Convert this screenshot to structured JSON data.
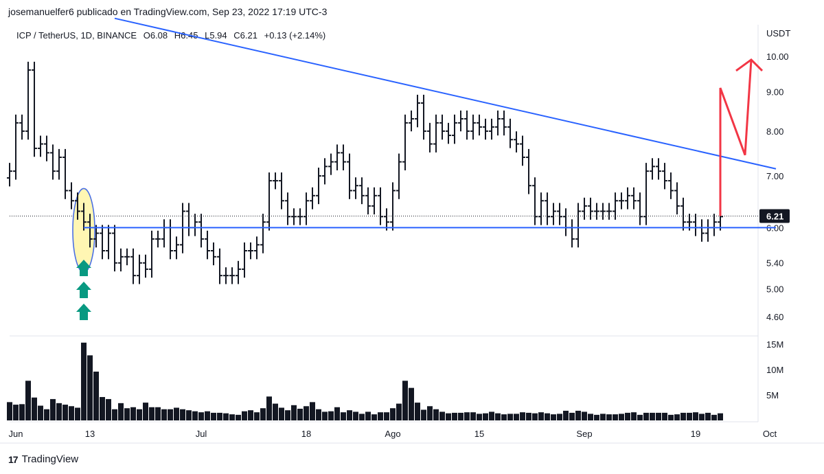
{
  "header": {
    "publisher": "josemanuelfer6 publicado en TradingView.com, Sep 23, 2022 17:19 UTC-3"
  },
  "brand": {
    "name": "TradingView",
    "logo_icon": "tradingview-logo-icon"
  },
  "colors": {
    "bars": "#131722",
    "trendline": "#2962ff",
    "projection": "#f23645",
    "ellipse_stroke": "#4a6fe3",
    "ellipse_fill": "#fff6b3",
    "arrows": "#089981",
    "volume": "#131722",
    "price_tag_bg": "#131722"
  },
  "chart_data": {
    "type": "ohlc",
    "symbol": "ICP / TetherUS, 1D, BINANCE",
    "ohlc_summary": {
      "O": "6.08",
      "H": "6.45",
      "L": "5.94",
      "C": "6.21",
      "change": "+0.13 (+2.14%)"
    },
    "y_unit": "USDT",
    "y_ticks": [
      10.0,
      9.0,
      8.0,
      7.0,
      6.0,
      5.4,
      5.0,
      4.6
    ],
    "y_tick_labels": [
      "10.00",
      "9.00",
      "8.00",
      "7.00",
      "6.00",
      "5.40",
      "5.00",
      "4.60"
    ],
    "last_price_label": "6.21",
    "last_price": 6.21,
    "x_tick_labels": [
      "Jun",
      "13",
      "Jul",
      "18",
      "Ago",
      "15",
      "Sep",
      "19",
      "Oct"
    ],
    "x_tick_dates": [
      "2022-06-01",
      "2022-06-13",
      "2022-07-01",
      "2022-07-18",
      "2022-08-01",
      "2022-08-15",
      "2022-09-01",
      "2022-09-19",
      "2022-10-01"
    ],
    "start_date": "2022-05-31",
    "volume_ticks_labels": [
      "15M",
      "10M",
      "5M"
    ],
    "volume_ticks": [
      15,
      10,
      5
    ],
    "closes": [
      7.1,
      8.2,
      8.0,
      9.6,
      7.6,
      7.7,
      7.5,
      7.1,
      7.4,
      6.7,
      6.5,
      6.3,
      6.1,
      5.8,
      5.9,
      5.6,
      5.9,
      5.4,
      5.5,
      5.5,
      5.2,
      5.4,
      5.3,
      5.8,
      5.8,
      6.0,
      5.6,
      5.7,
      6.3,
      6.0,
      6.1,
      5.8,
      5.6,
      5.5,
      5.2,
      5.2,
      5.2,
      5.3,
      5.6,
      5.6,
      5.7,
      6.1,
      6.9,
      6.9,
      6.5,
      6.2,
      6.2,
      6.2,
      6.5,
      6.6,
      7.0,
      7.2,
      7.3,
      7.5,
      7.3,
      6.7,
      6.8,
      6.6,
      6.4,
      6.6,
      6.2,
      6.1,
      6.7,
      7.3,
      8.2,
      8.3,
      8.7,
      8.0,
      7.7,
      8.2,
      8.0,
      7.9,
      8.2,
      8.3,
      8.0,
      8.2,
      8.1,
      8.0,
      8.1,
      8.3,
      8.1,
      7.8,
      7.7,
      7.4,
      6.8,
      6.2,
      6.5,
      6.2,
      6.3,
      6.2,
      6.0,
      5.8,
      6.3,
      6.4,
      6.3,
      6.3,
      6.3,
      6.3,
      6.5,
      6.5,
      6.6,
      6.5,
      6.2,
      7.1,
      7.2,
      7.1,
      6.9,
      6.7,
      6.4,
      6.1,
      6.1,
      6.0,
      5.9,
      6.0,
      6.1,
      6.2
    ],
    "volumes_m": [
      3.6,
      3.1,
      3.2,
      7.8,
      4.5,
      2.9,
      2.2,
      4.2,
      3.4,
      3.1,
      2.8,
      2.5,
      15.3,
      12.8,
      9.6,
      4.6,
      4.2,
      2.2,
      3.4,
      2.4,
      2.6,
      2.2,
      3.5,
      2.6,
      2.6,
      2.2,
      2.2,
      2.5,
      2.2,
      2.0,
      1.8,
      1.6,
      1.8,
      1.5,
      1.5,
      1.4,
      1.2,
      1.1,
      1.8,
      2.0,
      1.6,
      2.4,
      4.7,
      3.3,
      2.5,
      2.0,
      3.0,
      2.3,
      2.8,
      3.6,
      2.2,
      1.7,
      1.8,
      2.6,
      1.6,
      2.0,
      1.7,
      1.3,
      1.7,
      1.2,
      1.6,
      1.6,
      2.4,
      3.3,
      7.8,
      6.4,
      3.5,
      2.1,
      2.8,
      2.2,
      1.7,
      1.4,
      1.5,
      1.5,
      1.6,
      1.6,
      1.3,
      1.4,
      1.7,
      1.4,
      1.2,
      1.3,
      1.3,
      1.6,
      1.5,
      1.4,
      1.6,
      1.4,
      1.2,
      1.3,
      1.9,
      1.5,
      1.9,
      1.7,
      1.3,
      1.1,
      1.3,
      1.2,
      1.2,
      1.3,
      1.5,
      1.6,
      1.1,
      1.5,
      1.5,
      1.5,
      1.5,
      1.1,
      1.2,
      1.5,
      1.5,
      1.6,
      1.3,
      1.5,
      1.1,
      1.4
    ],
    "trendlines": [
      {
        "name": "support",
        "from": {
          "date": "2022-06-12",
          "price": 6.0
        },
        "to": {
          "date": "2022-10-02",
          "price": 6.0
        }
      },
      {
        "name": "resistance",
        "from": {
          "date": "2022-06-17",
          "price": 11.2
        },
        "to": {
          "date": "2022-10-02",
          "price": 7.15
        }
      }
    ],
    "projection": [
      {
        "date": "2022-09-23",
        "price": 6.21
      },
      {
        "date": "2022-09-23",
        "price": 9.1
      },
      {
        "date": "2022-09-27",
        "price": 7.45
      },
      {
        "date": "2022-09-28",
        "price": 9.9
      }
    ]
  }
}
